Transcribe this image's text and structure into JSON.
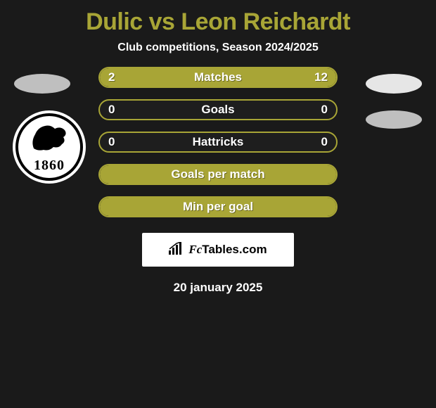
{
  "title": "Dulic vs Leon Reichardt",
  "subtitle": "Club competitions, Season 2024/2025",
  "colors": {
    "background": "#1a1a1a",
    "accent": "#a8a536",
    "text": "#ffffff",
    "badge_left": "#bfbfbf",
    "badge_right": "#e6e6e6",
    "footer_bg": "#ffffff"
  },
  "club_logo": {
    "year": "1860"
  },
  "bars": [
    {
      "label": "Matches",
      "left_value": "2",
      "right_value": "12",
      "left_fill_pct": 14,
      "right_fill_pct": 86
    },
    {
      "label": "Goals",
      "left_value": "0",
      "right_value": "0",
      "left_fill_pct": 0,
      "right_fill_pct": 0
    },
    {
      "label": "Hattricks",
      "left_value": "0",
      "right_value": "0",
      "left_fill_pct": 0,
      "right_fill_pct": 0
    },
    {
      "label": "Goals per match",
      "left_value": "",
      "right_value": "",
      "left_fill_pct": 100,
      "right_fill_pct": 0
    },
    {
      "label": "Min per goal",
      "left_value": "",
      "right_value": "",
      "left_fill_pct": 100,
      "right_fill_pct": 0
    }
  ],
  "footer": {
    "brand_left": "Fc",
    "brand_right": "Tables.com"
  },
  "date": "20 january 2025"
}
